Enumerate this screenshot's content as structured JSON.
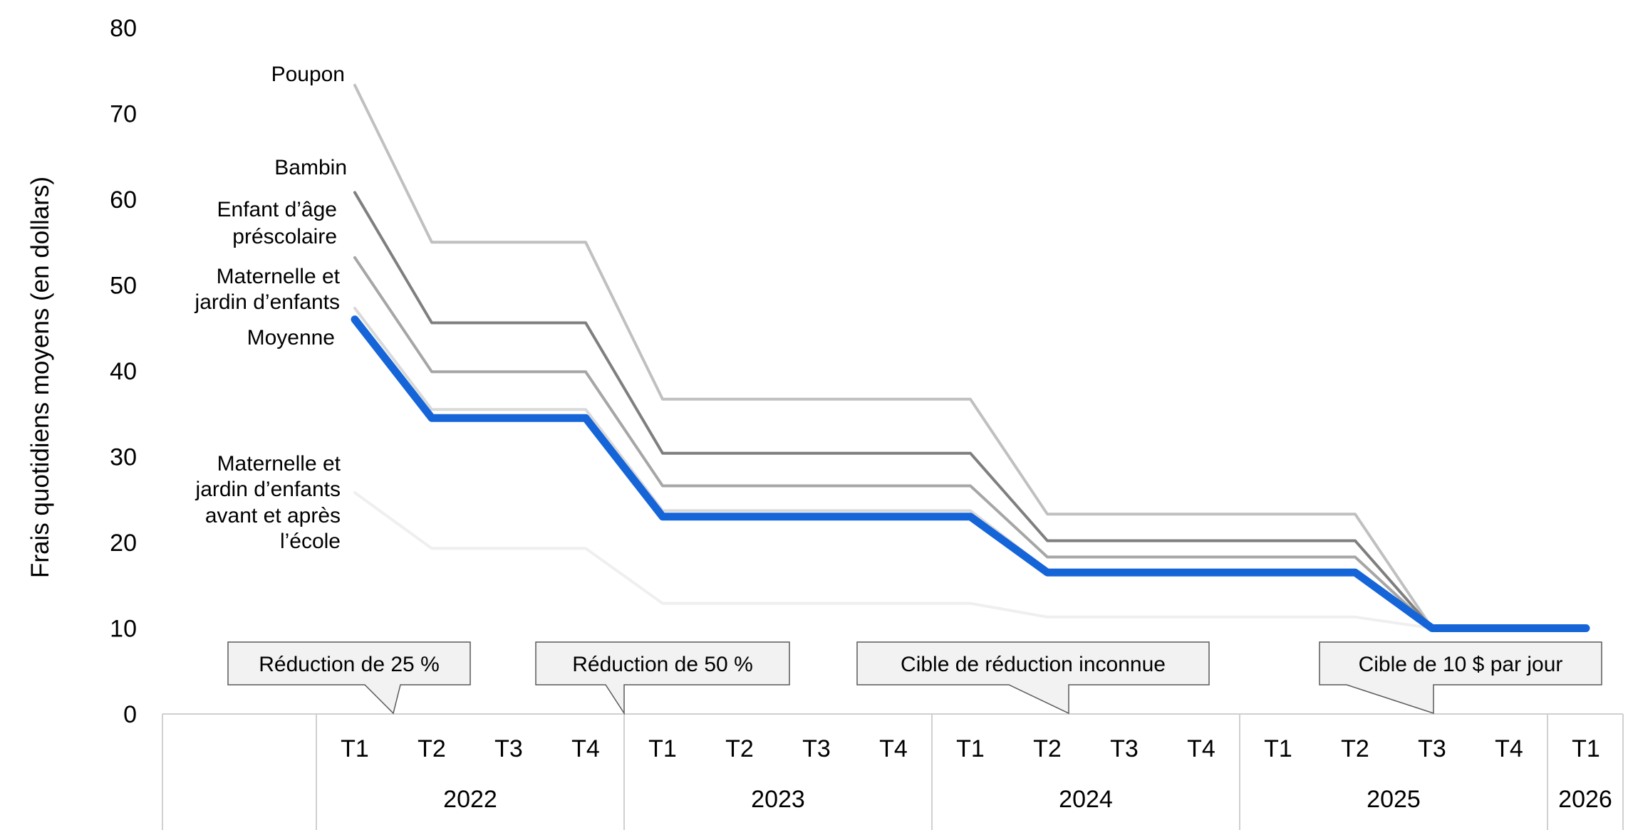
{
  "chart_data": {
    "type": "line",
    "ylabel": "Frais quotidiens moyens (en dollars)",
    "ylim": [
      0,
      80
    ],
    "yticks": [
      0,
      10,
      20,
      30,
      40,
      50,
      60,
      70,
      80
    ],
    "grid": false,
    "quarters": [
      "T1",
      "T2",
      "T3",
      "T4",
      "T1",
      "T2",
      "T3",
      "T4",
      "T1",
      "T2",
      "T3",
      "T4",
      "T1",
      "T2",
      "T3",
      "T4",
      "T1"
    ],
    "years": [
      {
        "label": "2022",
        "quarters": 4
      },
      {
        "label": "2023",
        "quarters": 4
      },
      {
        "label": "2024",
        "quarters": 4
      },
      {
        "label": "2025",
        "quarters": 4
      },
      {
        "label": "2026",
        "quarters": 1
      }
    ],
    "series": [
      {
        "name": "Poupon",
        "label_lines": [
          "Poupon"
        ],
        "color": "#c0c0c0",
        "width": 4,
        "values": [
          73.3,
          55,
          55,
          55,
          36.7,
          36.7,
          36.7,
          36.7,
          36.7,
          23.3,
          23.3,
          23.3,
          23.3,
          23.3,
          10,
          10,
          10
        ]
      },
      {
        "name": "Bambin",
        "label_lines": [
          "Bambin"
        ],
        "color": "#7f7f7f",
        "width": 4,
        "values": [
          60.8,
          45.6,
          45.6,
          45.6,
          30.4,
          30.4,
          30.4,
          30.4,
          30.4,
          20.2,
          20.2,
          20.2,
          20.2,
          20.2,
          10,
          10,
          10
        ]
      },
      {
        "name": "Enfant d’âge préscolaire",
        "label_lines": [
          "Enfant d’âge",
          "préscolaire"
        ],
        "color": "#a6a6a6",
        "width": 4,
        "values": [
          53.2,
          39.9,
          39.9,
          39.9,
          26.6,
          26.6,
          26.6,
          26.6,
          26.6,
          18.3,
          18.3,
          18.3,
          18.3,
          18.3,
          10,
          10,
          10
        ]
      },
      {
        "name": "Maternelle et jardin d’enfants",
        "label_lines": [
          "Maternelle et",
          "jardin d’enfants"
        ],
        "color": "#d9d9d9",
        "width": 4,
        "values": [
          47.3,
          35.5,
          35.5,
          35.5,
          23.7,
          23.7,
          23.7,
          23.7,
          23.7,
          16.8,
          16.8,
          16.8,
          16.8,
          16.8,
          10,
          10,
          10
        ]
      },
      {
        "name": "Maternelle et jardin d’enfants avant et après l’école",
        "label_lines": [
          "Maternelle et",
          "jardin d’enfants",
          "avant et après",
          "l’école"
        ],
        "color": "#efefef",
        "width": 4,
        "values": [
          25.8,
          19.3,
          19.3,
          19.3,
          12.9,
          12.9,
          12.9,
          12.9,
          12.9,
          11.3,
          11.3,
          11.3,
          11.3,
          11.3,
          10,
          10,
          10
        ]
      },
      {
        "name": "Moyenne",
        "label_lines": [
          "Moyenne"
        ],
        "color": "#1565d8",
        "width": 11,
        "values": [
          46,
          34.5,
          34.5,
          34.5,
          23,
          23,
          23,
          23,
          23,
          16.5,
          16.5,
          16.5,
          16.5,
          16.5,
          10,
          10,
          10
        ]
      }
    ],
    "annotations": [
      {
        "text": "Réduction de 25 %",
        "quarter_index": 0.5
      },
      {
        "text": "Réduction de 50 %",
        "quarter_index": 3.5
      },
      {
        "text": "Cible de réduction inconnue",
        "quarter_index": 9.3
      },
      {
        "text": "Cible de 10 $ par jour",
        "quarter_index": 14
      }
    ]
  }
}
